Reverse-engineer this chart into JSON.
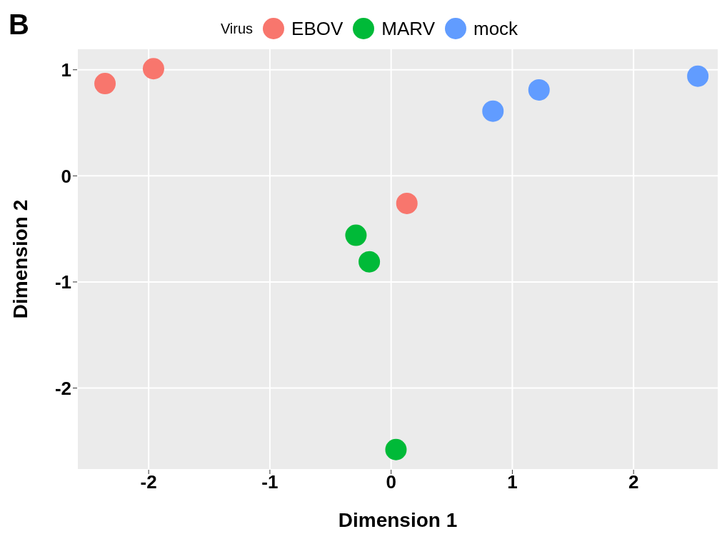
{
  "chart_data": {
    "type": "scatter",
    "xlabel": "Dimension  1",
    "ylabel": "Dimension  2",
    "legend_title": "Virus",
    "annotations": [
      "B"
    ],
    "series": [
      {
        "name": "EBOV",
        "color": "#f8766d",
        "x": [
          -2.36,
          -1.96,
          0.13
        ],
        "values": [
          0.87,
          1.01,
          -0.26
        ]
      },
      {
        "name": "MARV",
        "color": "#00ba38",
        "x": [
          -0.29,
          -0.18,
          0.04
        ],
        "values": [
          -0.56,
          -0.81,
          -2.58
        ]
      },
      {
        "name": "mock",
        "color": "#619cff",
        "x": [
          0.84,
          1.22,
          2.53
        ],
        "values": [
          0.61,
          0.81,
          0.94
        ]
      }
    ],
    "xlim": [
      -2.59,
      2.7
    ],
    "xticks": [
      -2,
      -1,
      0,
      1,
      2
    ],
    "ylim": [
      -2.77,
      1.2
    ],
    "yticks": [
      -2,
      -1,
      0,
      1
    ],
    "grid": true,
    "legend": "top",
    "marker": "circle"
  }
}
